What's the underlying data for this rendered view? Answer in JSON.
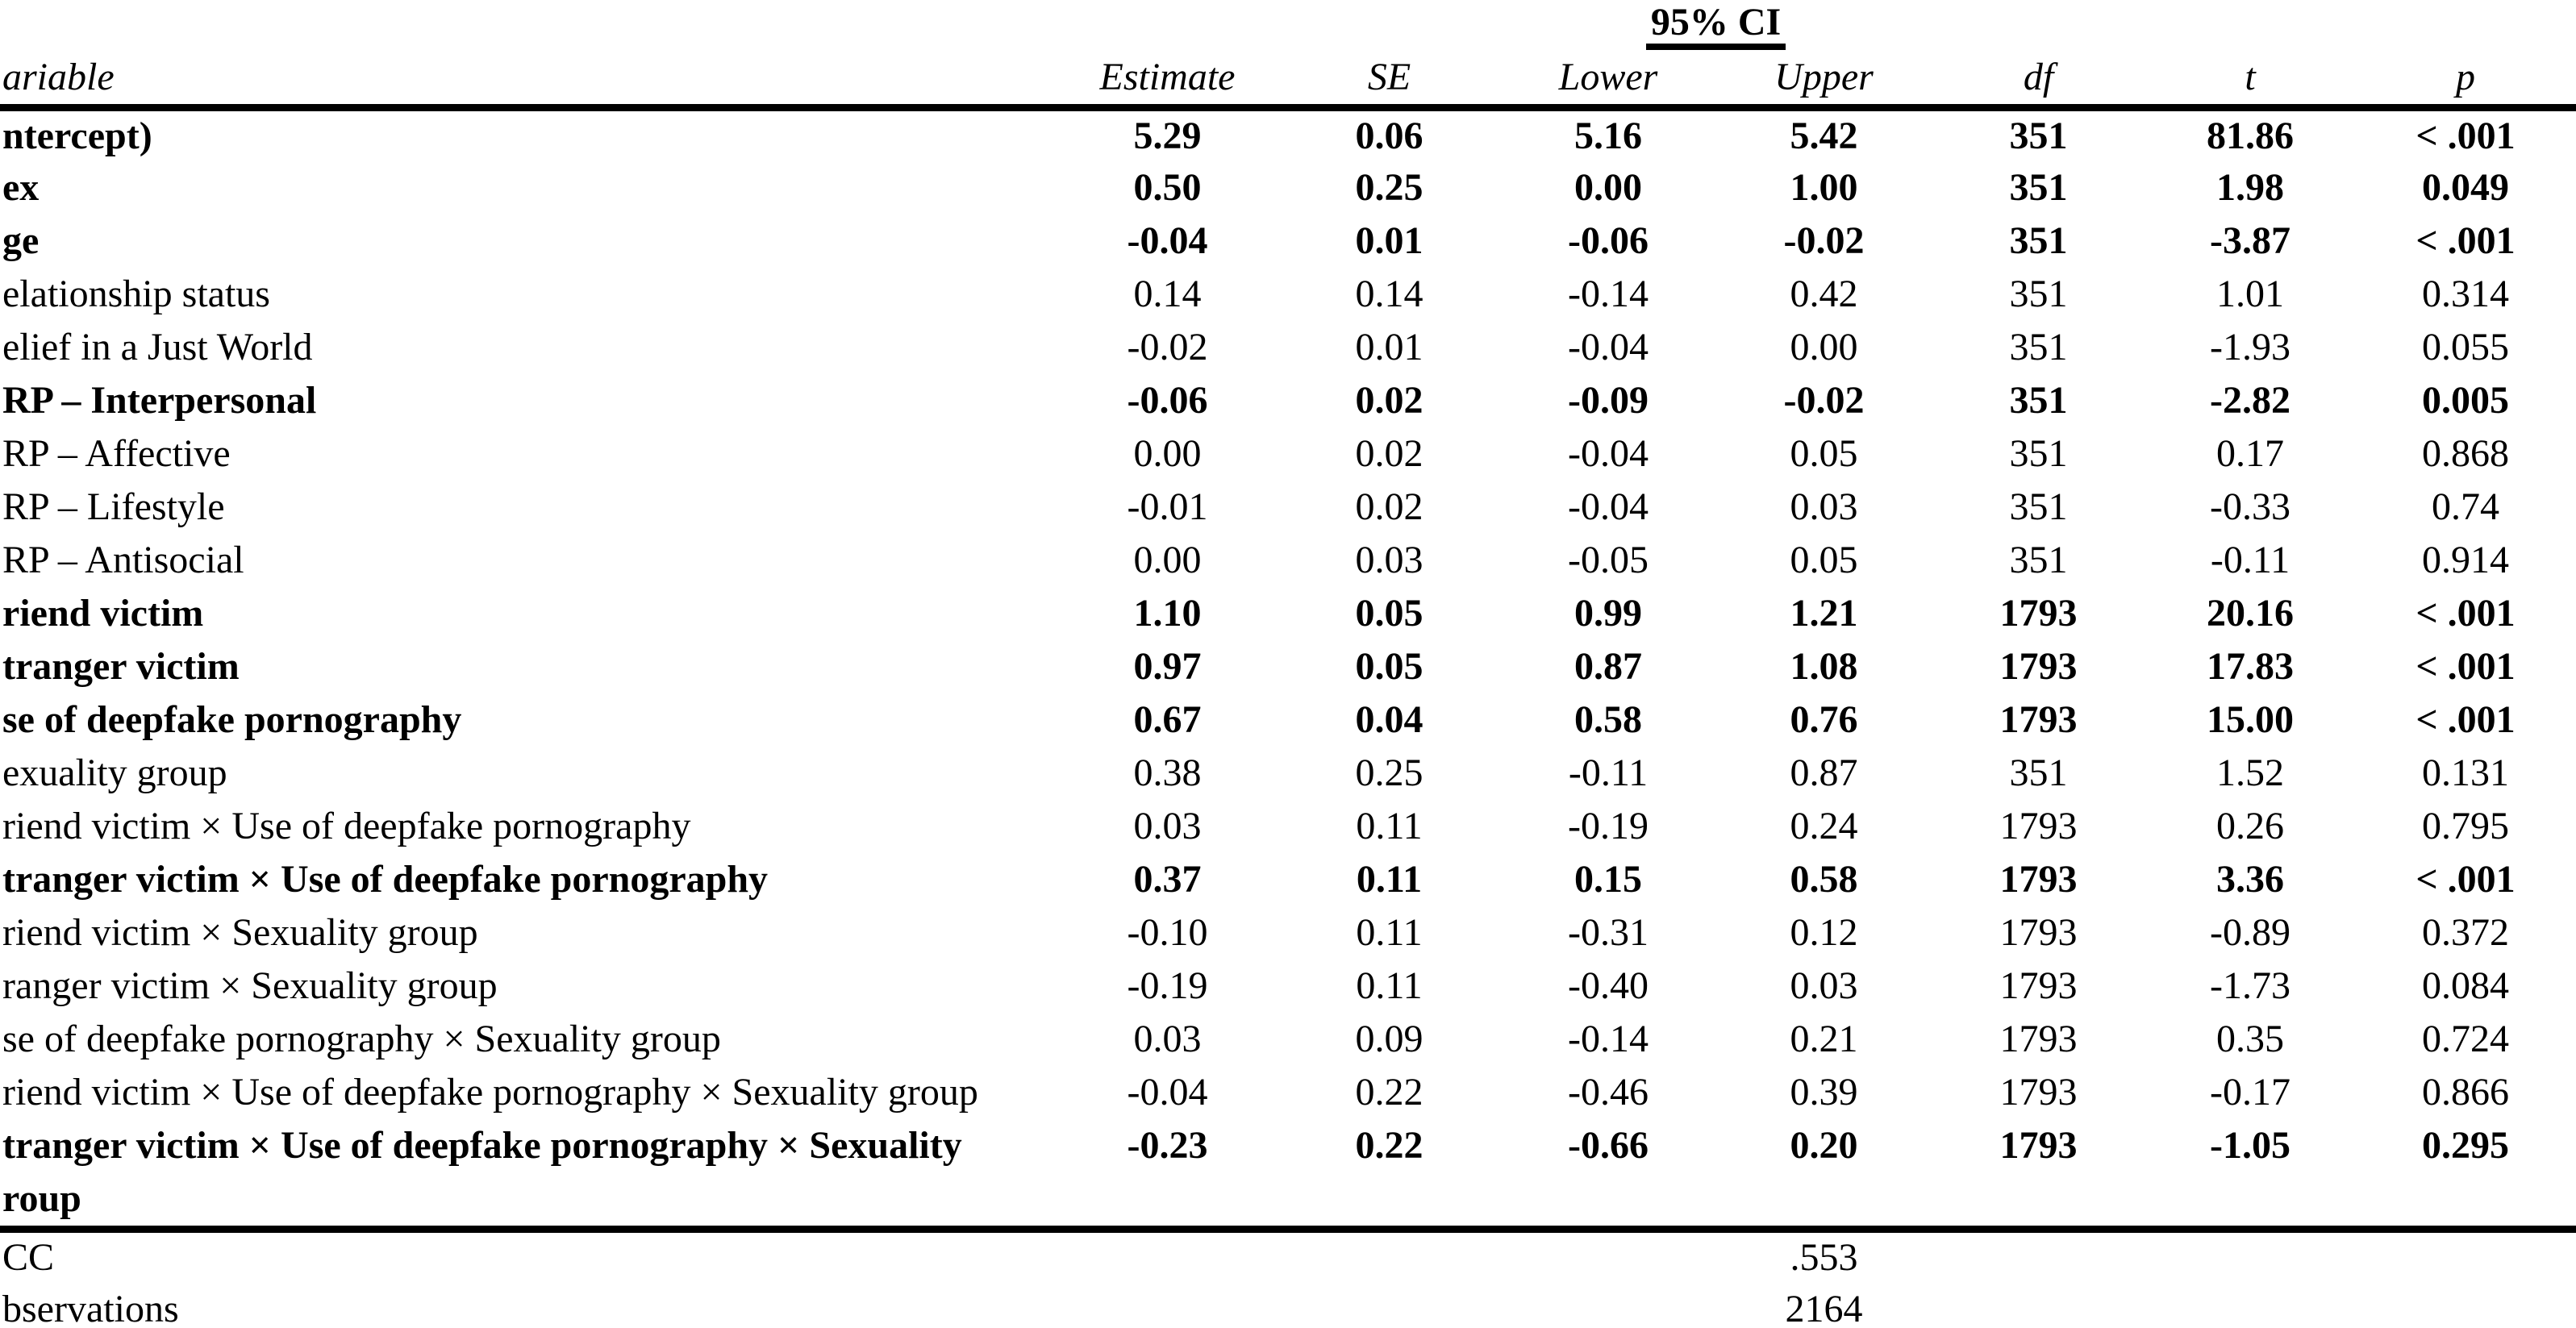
{
  "table": {
    "ci_header": "95% CI",
    "columns": [
      "ariable",
      "Estimate",
      "SE",
      "Lower",
      "Upper",
      "df",
      "t",
      "p"
    ],
    "rows": [
      {
        "label": "ntercept)",
        "bold": true,
        "values": [
          "5.29",
          "0.06",
          "5.16",
          "5.42",
          "351",
          "81.86",
          "< .001"
        ]
      },
      {
        "label": "ex",
        "bold": true,
        "values": [
          "0.50",
          "0.25",
          "0.00",
          "1.00",
          "351",
          "1.98",
          "0.049"
        ]
      },
      {
        "label": "ge",
        "bold": true,
        "values": [
          "-0.04",
          "0.01",
          "-0.06",
          "-0.02",
          "351",
          "-3.87",
          "< .001"
        ]
      },
      {
        "label": "elationship status",
        "bold": false,
        "values": [
          "0.14",
          "0.14",
          "-0.14",
          "0.42",
          "351",
          "1.01",
          "0.314"
        ]
      },
      {
        "label": "elief in a Just World",
        "bold": false,
        "values": [
          "-0.02",
          "0.01",
          "-0.04",
          "0.00",
          "351",
          "-1.93",
          "0.055"
        ]
      },
      {
        "label": "RP – Interpersonal",
        "bold": true,
        "values": [
          "-0.06",
          "0.02",
          "-0.09",
          "-0.02",
          "351",
          "-2.82",
          "0.005"
        ]
      },
      {
        "label": "RP – Affective",
        "bold": false,
        "values": [
          "0.00",
          "0.02",
          "-0.04",
          "0.05",
          "351",
          "0.17",
          "0.868"
        ]
      },
      {
        "label": "RP – Lifestyle",
        "bold": false,
        "values": [
          "-0.01",
          "0.02",
          "-0.04",
          "0.03",
          "351",
          "-0.33",
          "0.74"
        ]
      },
      {
        "label": "RP – Antisocial",
        "bold": false,
        "values": [
          "0.00",
          "0.03",
          "-0.05",
          "0.05",
          "351",
          "-0.11",
          "0.914"
        ]
      },
      {
        "label": "riend victim",
        "bold": true,
        "values": [
          "1.10",
          "0.05",
          "0.99",
          "1.21",
          "1793",
          "20.16",
          "< .001"
        ]
      },
      {
        "label": "tranger victim",
        "bold": true,
        "values": [
          "0.97",
          "0.05",
          "0.87",
          "1.08",
          "1793",
          "17.83",
          "< .001"
        ]
      },
      {
        "label": "se of deepfake pornography",
        "bold": true,
        "values": [
          "0.67",
          "0.04",
          "0.58",
          "0.76",
          "1793",
          "15.00",
          "< .001"
        ]
      },
      {
        "label": "exuality group",
        "bold": false,
        "values": [
          "0.38",
          "0.25",
          "-0.11",
          "0.87",
          "351",
          "1.52",
          "0.131"
        ]
      },
      {
        "label": "riend victim × Use of deepfake pornography",
        "bold": false,
        "values": [
          "0.03",
          "0.11",
          "-0.19",
          "0.24",
          "1793",
          "0.26",
          "0.795"
        ]
      },
      {
        "label": "tranger victim × Use of deepfake pornography",
        "bold": true,
        "values": [
          "0.37",
          "0.11",
          "0.15",
          "0.58",
          "1793",
          "3.36",
          "< .001"
        ]
      },
      {
        "label": "riend victim × Sexuality group",
        "bold": false,
        "values": [
          "-0.10",
          "0.11",
          "-0.31",
          "0.12",
          "1793",
          "-0.89",
          "0.372"
        ]
      },
      {
        "label": "ranger victim × Sexuality group",
        "bold": false,
        "values": [
          "-0.19",
          "0.11",
          "-0.40",
          "0.03",
          "1793",
          "-1.73",
          "0.084"
        ]
      },
      {
        "label": "se of deepfake pornography × Sexuality group",
        "bold": false,
        "values": [
          "0.03",
          "0.09",
          "-0.14",
          "0.21",
          "1793",
          "0.35",
          "0.724"
        ]
      },
      {
        "label": "riend victim × Use of deepfake pornography × Sexuality group",
        "bold": false,
        "values": [
          "-0.04",
          "0.22",
          "-0.46",
          "0.39",
          "1793",
          "-0.17",
          "0.866"
        ]
      },
      {
        "label": "tranger victim × Use of deepfake pornography × Sexuality",
        "label2": "roup",
        "bold": true,
        "values": [
          "-0.23",
          "0.22",
          "-0.66",
          "0.20",
          "1793",
          "-1.05",
          "0.295"
        ]
      }
    ],
    "footer_rows": [
      {
        "label": "CC",
        "value": ".553"
      },
      {
        "label": "bservations",
        "value": "2164"
      }
    ],
    "text_color": "#000000",
    "background_color": "#ffffff"
  }
}
